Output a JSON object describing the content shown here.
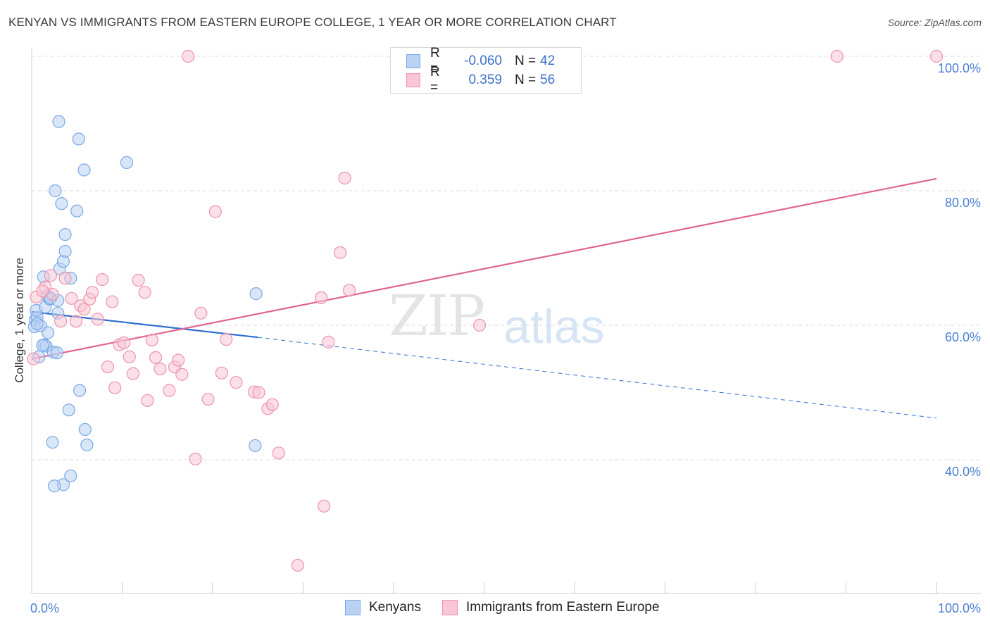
{
  "header": {
    "title": "KENYAN VS IMMIGRANTS FROM EASTERN EUROPE COLLEGE, 1 YEAR OR MORE CORRELATION CHART",
    "source": "Source: ZipAtlas.com"
  },
  "watermark": {
    "zip": "ZIP",
    "atlas": "atlas"
  },
  "legend": {
    "rows": [
      {
        "r_label": "R =",
        "r_value": "-0.060",
        "n_label": "N =",
        "n_value": "42",
        "color": "#7aa9e6",
        "fill": "#b9d2f3"
      },
      {
        "r_label": "R =",
        "r_value": "0.359",
        "n_label": "N =",
        "n_value": "56",
        "color": "#ee92ad",
        "fill": "#f8c6d4"
      }
    ]
  },
  "bottom_legend": {
    "kenyans": "Kenyans",
    "eastern_europe": "Immigrants from Eastern Europe"
  },
  "chart_data": {
    "type": "scatter",
    "title": "KENYAN VS IMMIGRANTS FROM EASTERN EUROPE COLLEGE, 1 YEAR OR MORE CORRELATION CHART",
    "xlabel": "",
    "ylabel": "College, 1 year or more",
    "xlim": [
      0,
      100
    ],
    "ylim": [
      20,
      102
    ],
    "x_tick_labels": [
      "0.0%",
      "100.0%"
    ],
    "y_ticks": [
      40,
      60,
      80,
      100
    ],
    "y_tick_labels": [
      "40.0%",
      "60.0%",
      "80.0%",
      "100.0%"
    ],
    "grid": true,
    "series": [
      {
        "name": "Kenyans",
        "color": "#7aa9e6",
        "fill": "#b9d2f3",
        "line_color": "#2e6fd3",
        "trend": {
          "x0": 0,
          "y0": 62.0,
          "x_solid_end": 25,
          "y_solid_end": 58.2,
          "x1": 100,
          "y1": 46.2
        },
        "points": [
          [
            0.8,
            55.3
          ],
          [
            0.4,
            60.8
          ],
          [
            0.6,
            61.2
          ],
          [
            0.3,
            59.8
          ],
          [
            0.5,
            62.2
          ],
          [
            1.0,
            59.9
          ],
          [
            1.3,
            67.2
          ],
          [
            1.4,
            57.1
          ],
          [
            1.6,
            56.9
          ],
          [
            1.5,
            62.7
          ],
          [
            1.7,
            64.4
          ],
          [
            1.8,
            58.9
          ],
          [
            2.0,
            63.9
          ],
          [
            2.1,
            64.0
          ],
          [
            2.3,
            42.6
          ],
          [
            2.4,
            56.0
          ],
          [
            2.6,
            80.0
          ],
          [
            2.8,
            55.9
          ],
          [
            2.9,
            61.8
          ],
          [
            2.9,
            63.7
          ],
          [
            3.0,
            90.3
          ],
          [
            3.1,
            68.4
          ],
          [
            3.3,
            78.1
          ],
          [
            3.5,
            69.5
          ],
          [
            3.7,
            73.5
          ],
          [
            3.7,
            71.0
          ],
          [
            3.5,
            36.3
          ],
          [
            4.1,
            47.4
          ],
          [
            4.3,
            37.6
          ],
          [
            4.3,
            67.0
          ],
          [
            5.0,
            77.0
          ],
          [
            5.2,
            87.7
          ],
          [
            5.3,
            50.3
          ],
          [
            5.8,
            83.1
          ],
          [
            5.9,
            44.5
          ],
          [
            6.1,
            42.2
          ],
          [
            10.5,
            84.2
          ],
          [
            24.8,
            64.7
          ],
          [
            24.7,
            42.1
          ],
          [
            2.5,
            36.1
          ],
          [
            0.6,
            60.2
          ],
          [
            1.2,
            57.0
          ]
        ]
      },
      {
        "name": "Immigrants from Eastern Europe",
        "color": "#ee92ad",
        "fill": "#f8c6d4",
        "line_color": "#e06590",
        "trend": {
          "x0": 0,
          "y0": 55.0,
          "x1": 100,
          "y1": 81.8
        },
        "points": [
          [
            0.2,
            55.0
          ],
          [
            0.5,
            64.2
          ],
          [
            1.5,
            65.7
          ],
          [
            2.1,
            67.4
          ],
          [
            2.3,
            64.6
          ],
          [
            3.2,
            60.6
          ],
          [
            3.7,
            67.0
          ],
          [
            4.4,
            64.0
          ],
          [
            4.9,
            60.6
          ],
          [
            5.4,
            62.9
          ],
          [
            5.8,
            62.4
          ],
          [
            6.4,
            63.9
          ],
          [
            6.7,
            64.9
          ],
          [
            7.3,
            60.9
          ],
          [
            7.8,
            66.8
          ],
          [
            8.4,
            53.8
          ],
          [
            8.9,
            63.5
          ],
          [
            9.2,
            50.7
          ],
          [
            9.7,
            57.1
          ],
          [
            10.2,
            57.4
          ],
          [
            10.8,
            55.3
          ],
          [
            11.2,
            52.8
          ],
          [
            11.8,
            66.7
          ],
          [
            12.5,
            64.9
          ],
          [
            12.8,
            48.8
          ],
          [
            13.3,
            57.8
          ],
          [
            13.7,
            55.2
          ],
          [
            14.2,
            53.5
          ],
          [
            15.2,
            50.3
          ],
          [
            15.8,
            53.8
          ],
          [
            16.2,
            54.8
          ],
          [
            16.6,
            52.7
          ],
          [
            17.3,
            100.0
          ],
          [
            18.1,
            40.1
          ],
          [
            18.7,
            61.8
          ],
          [
            19.5,
            49.0
          ],
          [
            20.3,
            76.9
          ],
          [
            21.0,
            52.9
          ],
          [
            21.5,
            57.9
          ],
          [
            22.6,
            51.5
          ],
          [
            24.6,
            50.1
          ],
          [
            25.1,
            50.0
          ],
          [
            26.1,
            47.6
          ],
          [
            26.6,
            48.2
          ],
          [
            27.3,
            41.0
          ],
          [
            29.4,
            24.3
          ],
          [
            32.0,
            64.1
          ],
          [
            32.3,
            33.1
          ],
          [
            32.8,
            57.5
          ],
          [
            34.1,
            70.8
          ],
          [
            34.6,
            81.9
          ],
          [
            35.1,
            65.2
          ],
          [
            49.5,
            60.0
          ],
          [
            89.0,
            100.0
          ],
          [
            100.0,
            100.0
          ],
          [
            1.2,
            65.1
          ]
        ]
      }
    ]
  }
}
